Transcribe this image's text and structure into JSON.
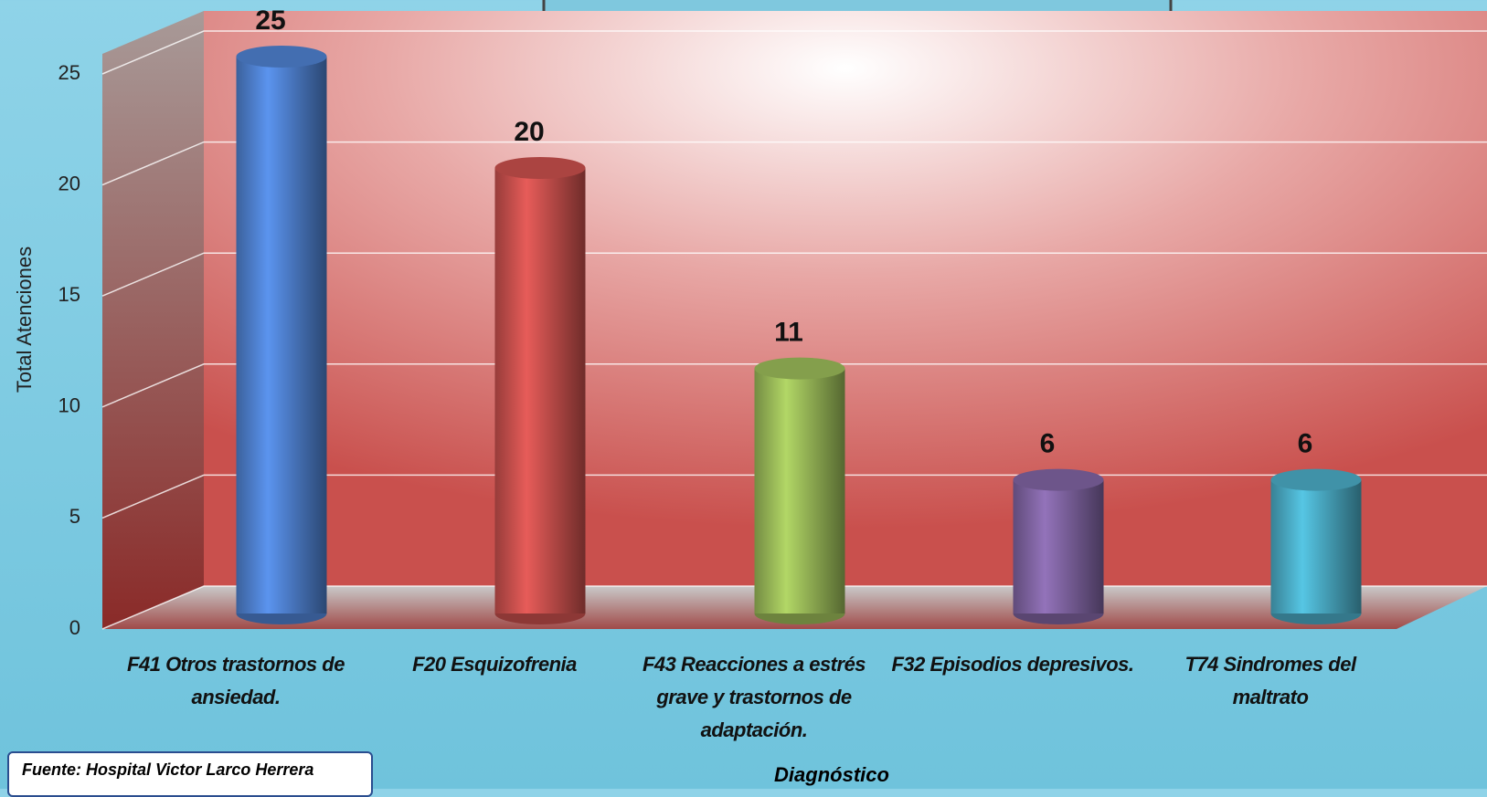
{
  "chart_data": {
    "type": "bar",
    "y_label": "Total Atenciones",
    "x_label": "Diagnóstico",
    "source": "Fuente:  Hospital Victor Larco Herrera",
    "categories": [
      "F41 Otros trastornos de ansiedad.",
      "F20 Esquizofrenia",
      "F43 Reacciones a estrés grave y trastornos de adaptación.",
      "F32 Episodios depresivos.",
      "T74 Sindromes del maltrato"
    ],
    "values": [
      25,
      20,
      11,
      6,
      6
    ],
    "colors": [
      "#4f81d0",
      "#c9504d",
      "#9bbb59",
      "#8064a2",
      "#4bacc6"
    ],
    "ylim": [
      0,
      25
    ],
    "yticks": [
      0,
      5,
      10,
      15,
      20,
      25
    ],
    "grid": true
  }
}
